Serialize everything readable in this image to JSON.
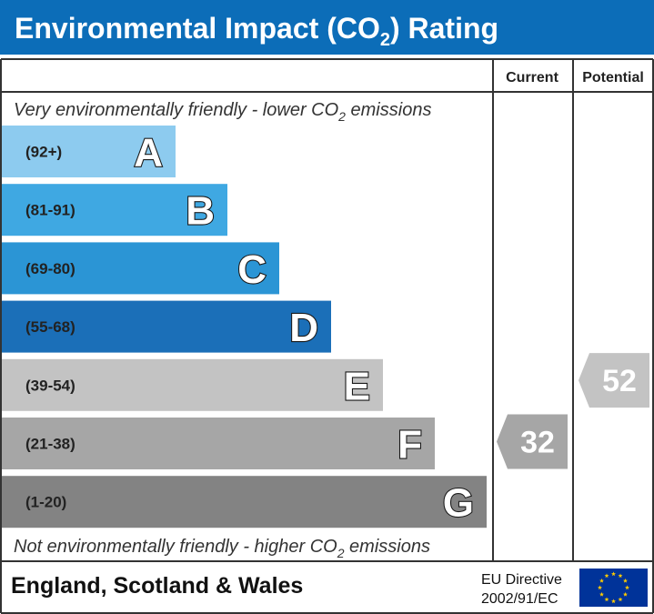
{
  "chart_data": {
    "type": "bar",
    "title": "Environmental Impact (CO",
    "title_sub": "2",
    "title_end": ") Rating",
    "columns": {
      "current": "Current",
      "potential": "Potential"
    },
    "top_note": {
      "pre": "Very environmentally friendly - lower CO",
      "sub": "2",
      "post": " emissions"
    },
    "bottom_note": {
      "pre": "Not environmentally friendly - higher CO",
      "sub": "2",
      "post": " emissions"
    },
    "bands": [
      {
        "letter": "A",
        "range": "(92+)",
        "min": 92,
        "max": 100,
        "color": "#8dcbef",
        "range_color": "#000000"
      },
      {
        "letter": "B",
        "range": "(81-91)",
        "min": 81,
        "max": 91,
        "color": "#3fa8e2",
        "range_color": "#222222"
      },
      {
        "letter": "C",
        "range": "(69-80)",
        "min": 69,
        "max": 80,
        "color": "#2b95d5",
        "range_color": "#222222"
      },
      {
        "letter": "D",
        "range": "(55-68)",
        "min": 55,
        "max": 68,
        "color": "#1b6fb8",
        "range_color": "#222222"
      },
      {
        "letter": "E",
        "range": "(39-54)",
        "min": 39,
        "max": 54,
        "color": "#c3c3c3",
        "range_color": "#222222"
      },
      {
        "letter": "F",
        "range": "(21-38)",
        "min": 21,
        "max": 38,
        "color": "#a6a6a6",
        "range_color": "#222222"
      },
      {
        "letter": "G",
        "range": "(1-20)",
        "min": 1,
        "max": 20,
        "color": "#838383",
        "range_color": "#222222"
      }
    ],
    "current_rating": {
      "value": 32,
      "band": "F",
      "color": "#a6a6a6"
    },
    "potential_rating": {
      "value": 52,
      "band": "E",
      "color": "#c3c3c3"
    },
    "footer": {
      "region": "England, Scotland & Wales",
      "directive_line1": "EU Directive",
      "directive_line2": "2002/91/EC"
    },
    "colors": {
      "header_bg": "#0c6db8",
      "border": "#333333",
      "eu_flag_bg": "#003399",
      "eu_star": "#ffcc00"
    }
  }
}
